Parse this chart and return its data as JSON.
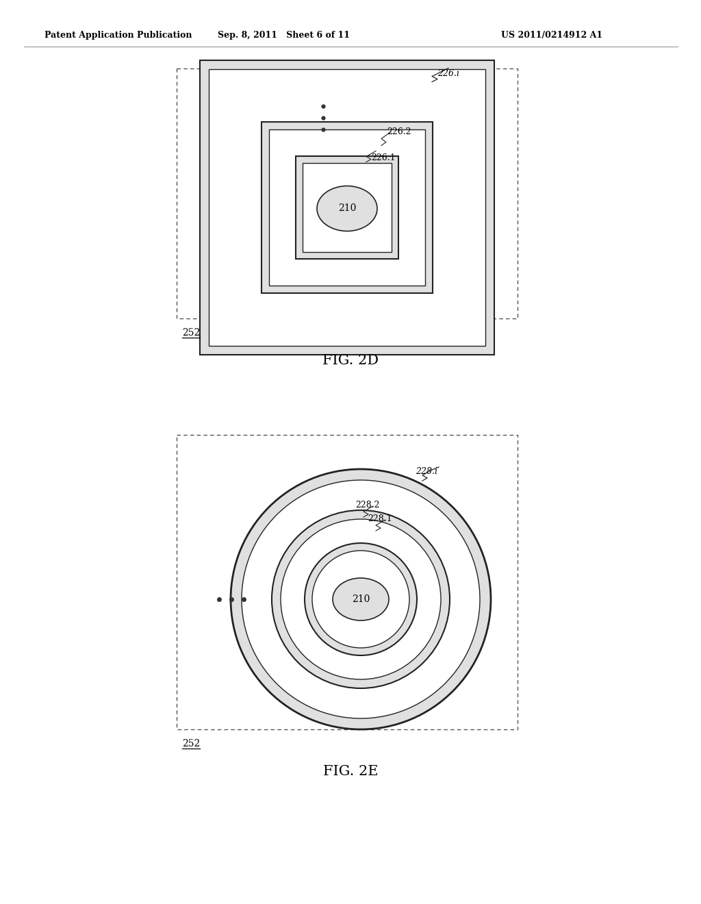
{
  "background_color": "#ffffff",
  "header_left": "Patent Application Publication",
  "header_center": "Sep. 8, 2011   Sheet 6 of 11",
  "header_right": "US 2011/0214912 A1",
  "fig2d_label": "FIG. 2D",
  "fig2e_label": "FIG. 2E",
  "label_252": "252",
  "label_210": "210",
  "label_226i": "226.i",
  "label_2262": "226.2",
  "label_2261": "226.1",
  "label_228i": "228.i",
  "label_2282": "228.2",
  "label_2281": "228.1",
  "dotted_fill_color": "#e0e0e0",
  "line_color": "#222222",
  "dashed_box_color": "#555555"
}
